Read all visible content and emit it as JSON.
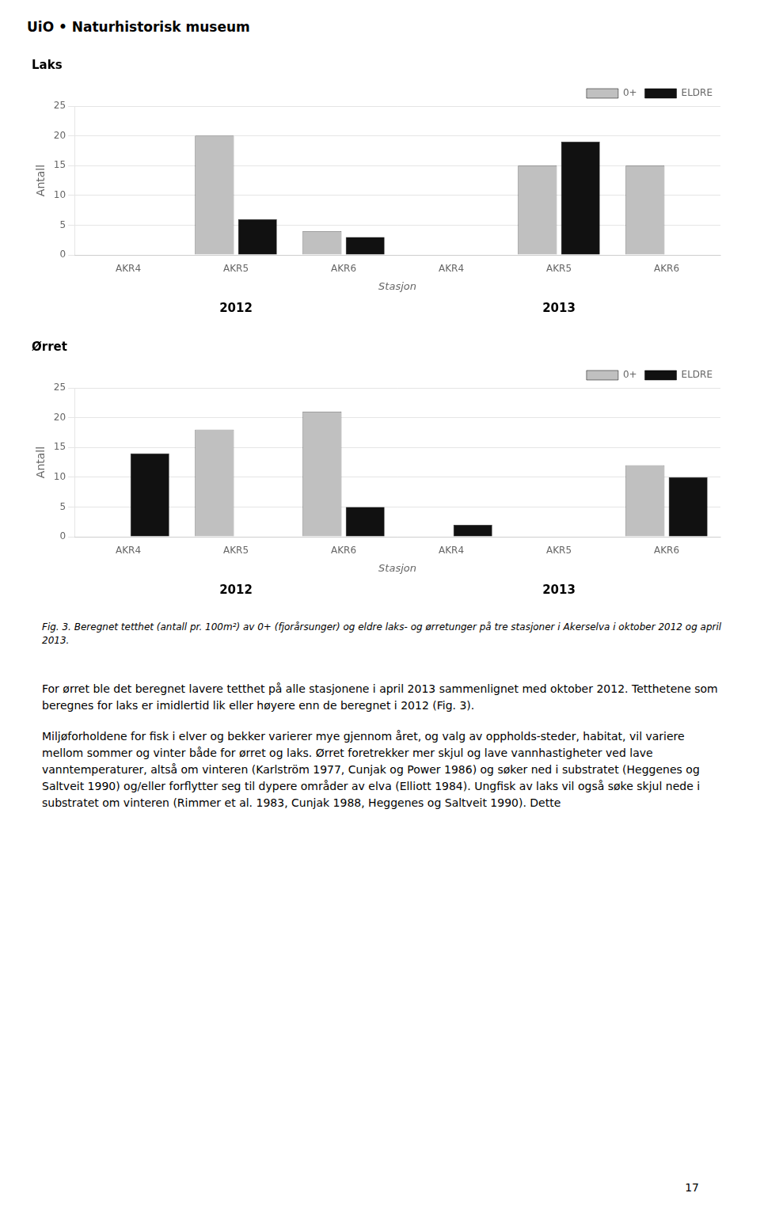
{
  "header": "UiO • Naturhistorisk museum",
  "chart_data": [
    {
      "type": "bar",
      "title": "Laks",
      "ylabel": "Antall",
      "xlabel": "Stasjon",
      "categories": [
        "AKR4",
        "AKR5",
        "AKR6",
        "AKR4",
        "AKR5",
        "AKR6"
      ],
      "annotations": [
        "2012",
        "2013"
      ],
      "series": [
        {
          "name": "0+",
          "color": "#c0c0c0",
          "values": [
            0,
            20,
            4,
            0,
            15,
            15
          ]
        },
        {
          "name": "ELDRE",
          "color": "#111111",
          "values": [
            0,
            6,
            3,
            0,
            19,
            0
          ]
        }
      ],
      "ylim": [
        0,
        25
      ],
      "yticks": [
        0,
        5,
        10,
        15,
        20,
        25
      ],
      "grid": true,
      "legend": "upper right"
    },
    {
      "type": "bar",
      "title": "Ørret",
      "ylabel": "Antall",
      "xlabel": "Stasjon",
      "categories": [
        "AKR4",
        "AKR5",
        "AKR6",
        "AKR4",
        "AKR5",
        "AKR6"
      ],
      "annotations": [
        "2012",
        "2013"
      ],
      "series": [
        {
          "name": "0+",
          "color": "#c0c0c0",
          "values": [
            0,
            18,
            21,
            0,
            0,
            12
          ]
        },
        {
          "name": "ELDRE",
          "color": "#111111",
          "values": [
            14,
            0,
            5,
            2,
            0,
            10
          ]
        }
      ],
      "ylim": [
        0,
        25
      ],
      "yticks": [
        0,
        5,
        10,
        15,
        20,
        25
      ],
      "grid": true,
      "legend": "upper right"
    }
  ],
  "caption": "Fig. 3. Beregnet tetthet (antall pr. 100m²) av 0+ (fjorårsunger) og eldre laks- og ørretunger på tre stasjoner i Akerselva i oktober 2012 og april 2013.",
  "body_text": [
    "For ørret ble det beregnet lavere tetthet på alle stasjonene i april 2013 sammenlignet med oktober 2012.  Tetthetene som beregnes for laks er imidlertid lik eller høyere enn de beregnet i 2012 (Fig. 3).",
    "Miljøforholdene for fisk i elver og bekker varierer mye gjennom året, og valg av oppholds-steder, habitat, vil variere mellom sommer og vinter både for ørret og laks. Ørret foretrekker mer skjul og lave vannhastigheter ved lave vanntemperaturer, altså om vinteren (Karlström 1977, Cunjak og Power 1986) og søker ned i substratet (Heggenes og Saltveit 1990) og/eller forflytter seg til dypere områder av elva (Elliott 1984). Ungfisk av laks vil også søke skjul nede i substratet om vinteren (Rimmer et al. 1983, Cunjak 1988, Heggenes og Saltveit 1990). Dette"
  ],
  "page_number": "17"
}
